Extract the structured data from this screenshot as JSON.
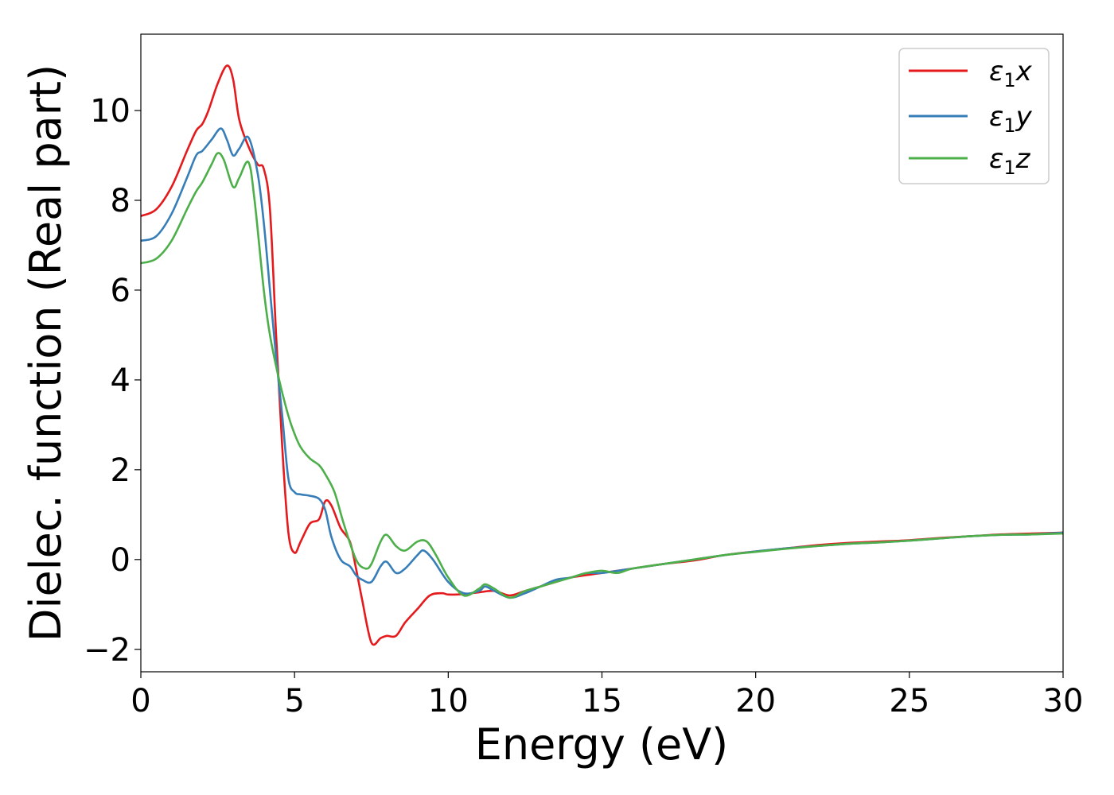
{
  "chart_data": {
    "type": "line",
    "xlabel": "Energy (eV)",
    "ylabel": "Dielec. function (Real part)",
    "xlim": [
      0,
      30
    ],
    "ylim": [
      -2.5,
      11.7
    ],
    "xticks": [
      0,
      5,
      10,
      15,
      20,
      25,
      30
    ],
    "xtick_labels": [
      "0",
      "5",
      "10",
      "15",
      "20",
      "25",
      "30"
    ],
    "yticks": [
      -2,
      0,
      2,
      4,
      6,
      8,
      10
    ],
    "ytick_labels": [
      "−2",
      "0",
      "2",
      "4",
      "6",
      "8",
      "10"
    ],
    "grid": false,
    "legend_position": "top-right",
    "series": [
      {
        "name": "ε1x",
        "label_main": "ε",
        "label_sub": "1",
        "label_axis": "x",
        "color": "#e41a1c",
        "x": [
          0,
          0.5,
          1.0,
          1.5,
          1.8,
          2.0,
          2.2,
          2.5,
          2.8,
          3.0,
          3.2,
          3.5,
          3.8,
          4.0,
          4.2,
          4.4,
          4.6,
          4.8,
          5.0,
          5.2,
          5.5,
          5.8,
          6.0,
          6.2,
          6.5,
          6.8,
          7.0,
          7.2,
          7.5,
          7.8,
          8.0,
          8.3,
          8.6,
          9.0,
          9.4,
          9.8,
          10.0,
          10.5,
          11.0,
          11.5,
          12.0,
          12.5,
          13.0,
          13.5,
          14.0,
          15.0,
          16.0,
          17.0,
          18.0,
          19.0,
          20.0,
          21.0,
          22.0,
          23.0,
          24.0,
          25.0,
          26.0,
          27.0,
          28.0,
          29.0,
          30.0
        ],
        "y": [
          7.65,
          7.8,
          8.3,
          9.1,
          9.55,
          9.7,
          10.0,
          10.6,
          11.0,
          10.7,
          9.8,
          9.2,
          8.8,
          8.7,
          7.8,
          5.0,
          2.5,
          0.6,
          0.15,
          0.4,
          0.8,
          0.9,
          1.3,
          1.2,
          0.7,
          0.4,
          -0.2,
          -0.9,
          -1.85,
          -1.75,
          -1.7,
          -1.7,
          -1.4,
          -1.1,
          -0.8,
          -0.75,
          -0.78,
          -0.77,
          -0.73,
          -0.7,
          -0.8,
          -0.7,
          -0.6,
          -0.5,
          -0.4,
          -0.3,
          -0.2,
          -0.1,
          -0.02,
          0.1,
          0.18,
          0.25,
          0.32,
          0.37,
          0.4,
          0.43,
          0.48,
          0.52,
          0.56,
          0.58,
          0.6
        ]
      },
      {
        "name": "ε1y",
        "label_main": "ε",
        "label_sub": "1",
        "label_axis": "y",
        "color": "#377eb8",
        "x": [
          0,
          0.5,
          1.0,
          1.5,
          1.8,
          2.0,
          2.3,
          2.6,
          2.8,
          3.0,
          3.2,
          3.5,
          3.8,
          4.0,
          4.2,
          4.4,
          4.6,
          4.8,
          5.0,
          5.2,
          5.5,
          5.8,
          6.0,
          6.2,
          6.5,
          6.8,
          7.0,
          7.2,
          7.5,
          7.8,
          8.0,
          8.3,
          8.6,
          9.0,
          9.2,
          9.5,
          10.0,
          10.5,
          11.0,
          11.2,
          11.5,
          12.0,
          12.5,
          13.0,
          13.5,
          14.0,
          14.5,
          15.0,
          16.0,
          17.0,
          18.0,
          19.0,
          20.0,
          21.0,
          22.0,
          23.0,
          24.0,
          25.0,
          26.0,
          27.0,
          28.0,
          29.0,
          30.0
        ],
        "y": [
          7.1,
          7.2,
          7.7,
          8.5,
          9.0,
          9.1,
          9.35,
          9.6,
          9.35,
          9.0,
          9.15,
          9.4,
          8.6,
          7.5,
          6.0,
          4.5,
          3.2,
          1.8,
          1.5,
          1.45,
          1.42,
          1.35,
          1.1,
          0.5,
          0.0,
          -0.15,
          -0.35,
          -0.45,
          -0.5,
          -0.15,
          -0.05,
          -0.3,
          -0.2,
          0.1,
          0.2,
          0.0,
          -0.5,
          -0.75,
          -0.7,
          -0.6,
          -0.7,
          -0.85,
          -0.75,
          -0.6,
          -0.45,
          -0.4,
          -0.3,
          -0.3,
          -0.2,
          -0.1,
          0.0,
          0.1,
          0.18,
          0.25,
          0.3,
          0.35,
          0.38,
          0.42,
          0.47,
          0.52,
          0.55,
          0.56,
          0.6
        ]
      },
      {
        "name": "ε1z",
        "label_main": "ε",
        "label_sub": "1",
        "label_axis": "z",
        "color": "#4daf4a",
        "x": [
          0,
          0.5,
          1.0,
          1.5,
          1.8,
          2.0,
          2.3,
          2.5,
          2.7,
          3.0,
          3.2,
          3.5,
          3.7,
          4.0,
          4.2,
          4.5,
          4.8,
          5.0,
          5.2,
          5.5,
          5.8,
          6.0,
          6.3,
          6.6,
          7.0,
          7.3,
          7.5,
          7.8,
          8.0,
          8.3,
          8.6,
          9.0,
          9.3,
          9.6,
          10.0,
          10.5,
          11.0,
          11.2,
          11.5,
          12.0,
          12.5,
          13.0,
          13.5,
          14.0,
          14.5,
          15.0,
          15.5,
          16.0,
          17.0,
          18.0,
          19.0,
          20.0,
          21.0,
          22.0,
          23.0,
          24.0,
          25.0,
          26.0,
          27.0,
          28.0,
          29.0,
          30.0
        ],
        "y": [
          6.6,
          6.7,
          7.1,
          7.8,
          8.2,
          8.4,
          8.8,
          9.05,
          8.9,
          8.3,
          8.5,
          8.85,
          8.0,
          6.0,
          5.0,
          4.0,
          3.2,
          2.8,
          2.5,
          2.25,
          2.1,
          1.9,
          1.5,
          0.8,
          0.0,
          -0.2,
          -0.1,
          0.4,
          0.55,
          0.3,
          0.2,
          0.4,
          0.4,
          0.1,
          -0.4,
          -0.8,
          -0.65,
          -0.55,
          -0.65,
          -0.85,
          -0.7,
          -0.6,
          -0.5,
          -0.4,
          -0.3,
          -0.25,
          -0.3,
          -0.2,
          -0.1,
          0.0,
          0.1,
          0.17,
          0.24,
          0.3,
          0.35,
          0.38,
          0.42,
          0.47,
          0.52,
          0.55,
          0.56,
          0.58
        ]
      }
    ]
  }
}
